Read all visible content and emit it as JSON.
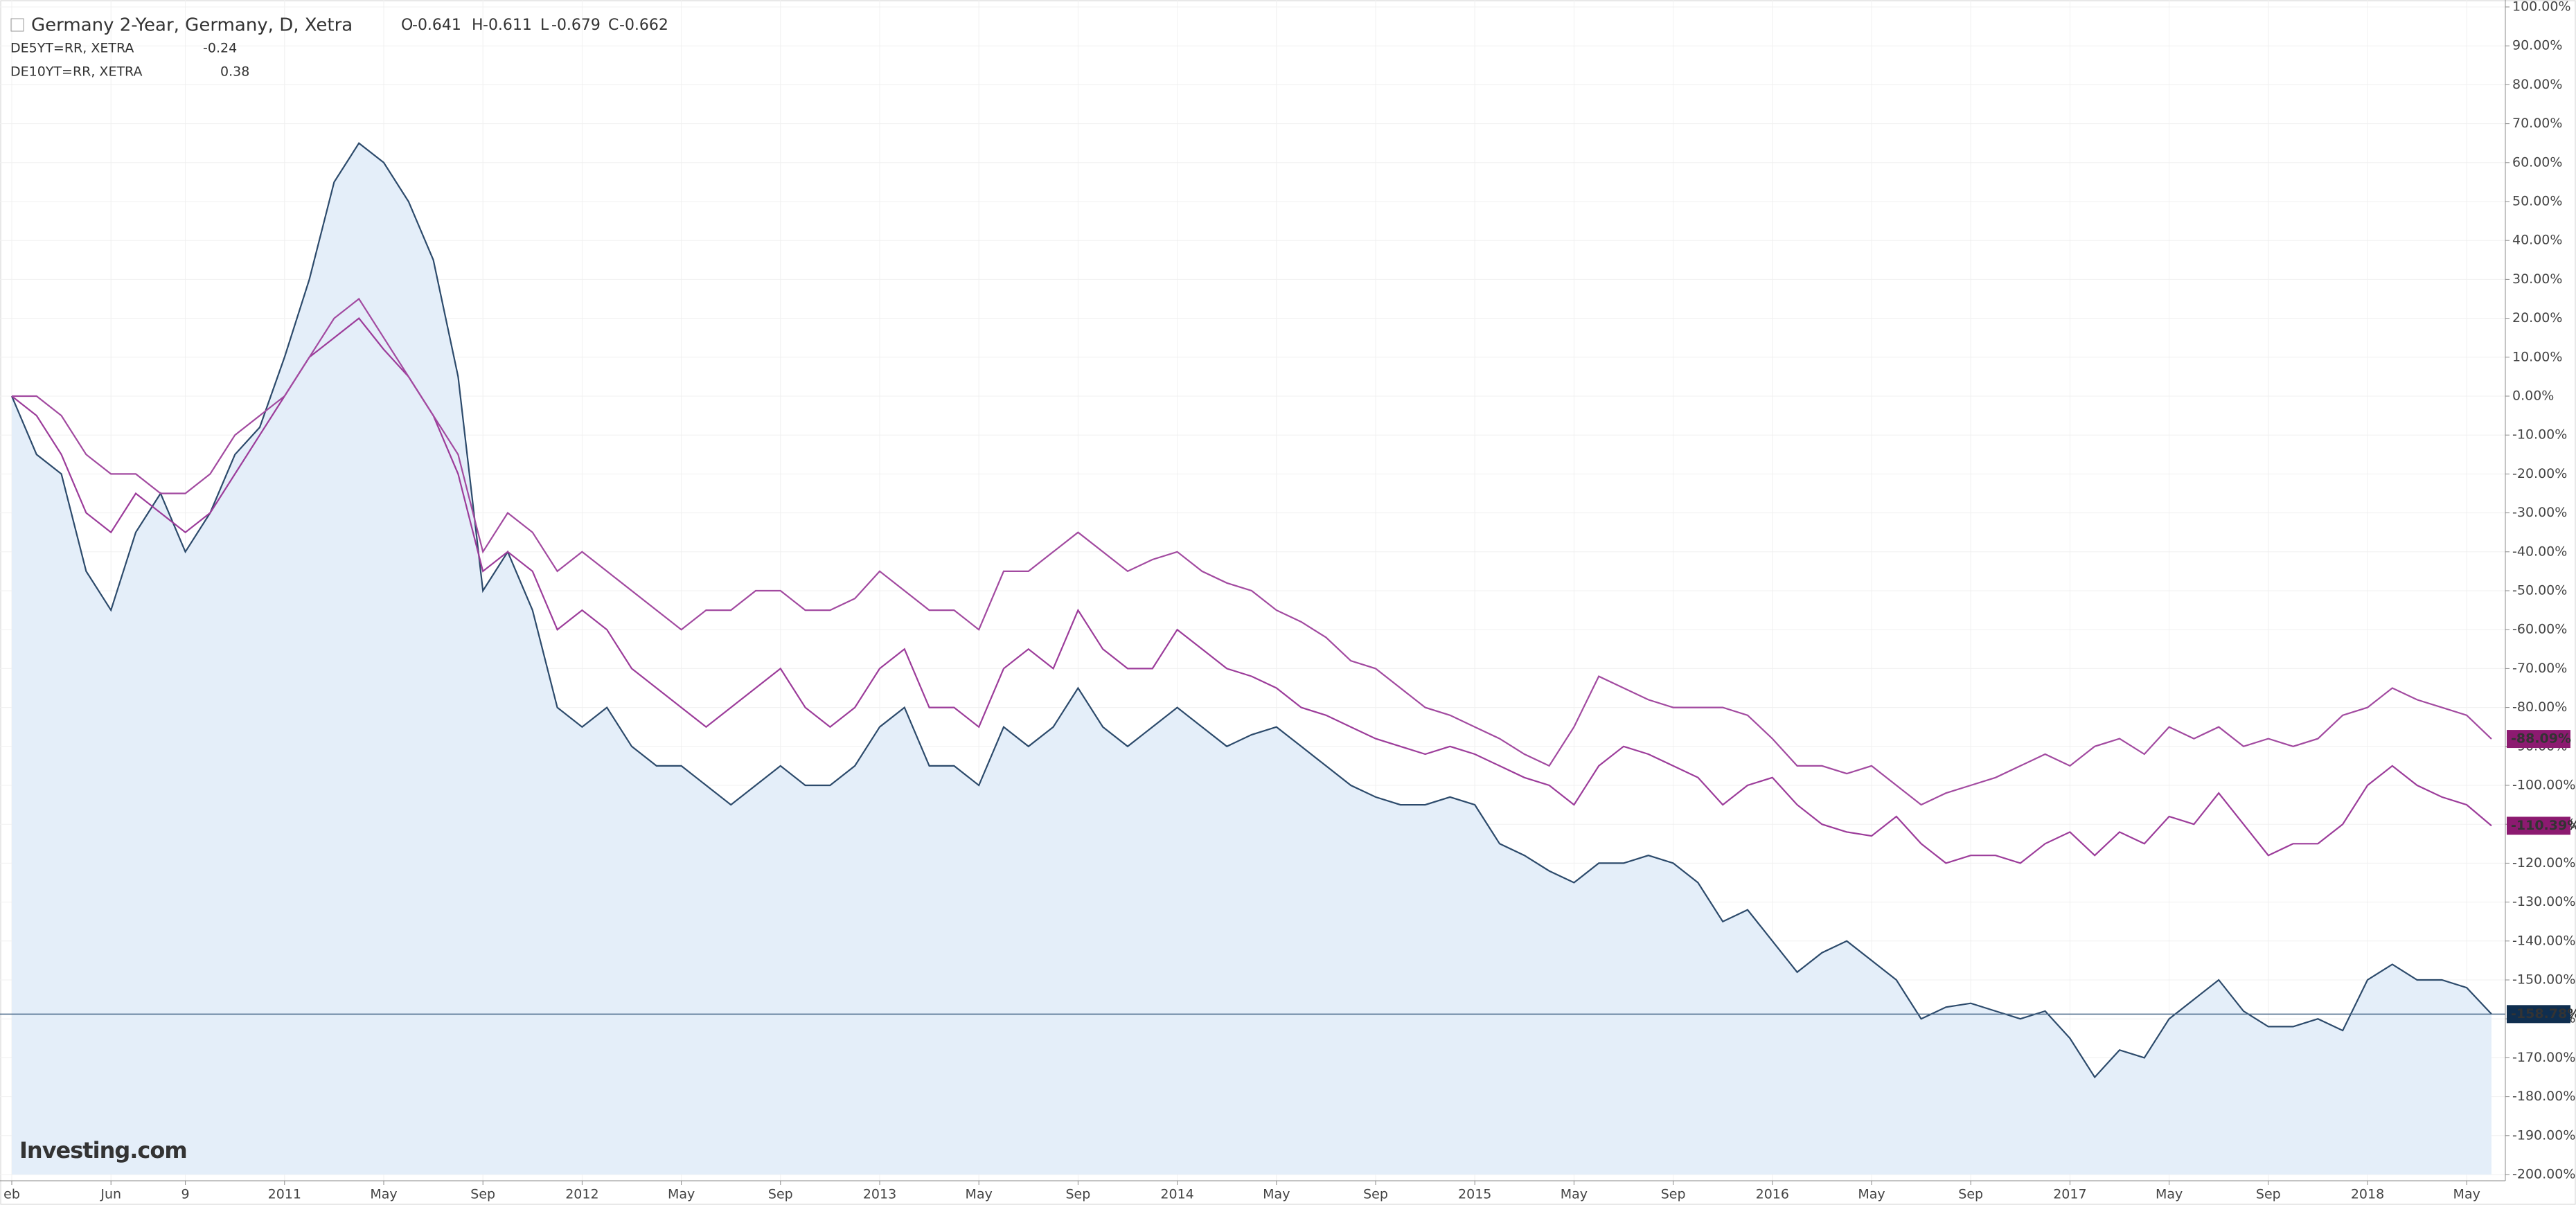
{
  "chart_data": {
    "type": "line",
    "ohlc": [
      {
        "label": "O",
        "value": -0.641
      },
      {
        "label": "H",
        "value": -0.611
      },
      {
        "label": "L",
        "value": -0.679
      },
      {
        "label": "C",
        "value": -0.662
      }
    ],
    "brand": "Investing.com",
    "categories": [
      "eb",
      null,
      null,
      null,
      "Jun",
      null,
      null,
      "9",
      null,
      null,
      null,
      "2011",
      null,
      null,
      null,
      "May",
      null,
      null,
      null,
      "Sep",
      null,
      null,
      null,
      "2012",
      null,
      null,
      null,
      "May",
      null,
      null,
      null,
      "Sep",
      null,
      null,
      null,
      "2013",
      null,
      null,
      null,
      "May",
      null,
      null,
      null,
      "Sep",
      null,
      null,
      null,
      "2014",
      null,
      null,
      null,
      "May",
      null,
      null,
      null,
      "Sep",
      null,
      null,
      null,
      "2015",
      null,
      null,
      null,
      "May",
      null,
      null,
      null,
      "Sep",
      null,
      null,
      null,
      "2016",
      null,
      null,
      null,
      "May",
      null,
      null,
      null,
      "Sep",
      null,
      null,
      null,
      "2017",
      null,
      null,
      null,
      "May",
      null,
      null,
      null,
      "Sep",
      null,
      null,
      null,
      "2018",
      null,
      null,
      null,
      "May",
      null
    ],
    "series": [
      {
        "name": "Germany 2-Year, Germany, D, Xetra",
        "color": "#2c4a6b",
        "area": "#e4eef9",
        "tag_color": "#0f2e4f",
        "values": [
          0,
          -15,
          -20,
          -45,
          -55,
          -35,
          -25,
          -40,
          -30,
          -15,
          -8,
          10,
          30,
          55,
          65,
          60,
          50,
          35,
          5,
          -50,
          -40,
          -55,
          -80,
          -85,
          -80,
          -90,
          -95,
          -95,
          -100,
          -105,
          -100,
          -95,
          -100,
          -100,
          -95,
          -85,
          -80,
          -95,
          -95,
          -100,
          -85,
          -90,
          -85,
          -75,
          -85,
          -90,
          -85,
          -80,
          -85,
          -90,
          -87,
          -85,
          -90,
          -95,
          -100,
          -103,
          -105,
          -105,
          -103,
          -105,
          -115,
          -118,
          -122,
          -125,
          -120,
          -120,
          -118,
          -120,
          -125,
          -135,
          -132,
          -140,
          -148,
          -143,
          -140,
          -145,
          -150,
          -160,
          -157,
          -156,
          -158,
          -160,
          -158,
          -165,
          -175,
          -168,
          -170,
          -160,
          -155,
          -150,
          -158,
          -162,
          -162,
          -160,
          -163,
          -150,
          -146,
          -150,
          -150,
          -152,
          -158.78
        ],
        "value_labels": [
          null,
          null,
          null,
          null,
          null,
          null,
          null,
          null,
          null,
          null,
          null,
          null,
          null,
          null,
          null,
          null,
          null,
          null,
          null,
          null,
          null,
          null,
          null,
          null,
          null,
          null,
          null,
          null,
          null,
          null,
          null,
          null,
          null,
          null,
          null,
          null,
          null,
          null,
          null,
          null,
          null,
          null,
          null,
          null,
          null,
          null,
          null,
          null,
          null,
          null,
          null,
          null,
          null,
          null,
          null,
          null,
          null,
          null,
          null,
          null,
          null,
          null,
          null,
          null,
          null,
          null,
          null,
          null,
          null,
          null,
          null,
          null,
          null,
          null,
          null,
          null,
          null,
          null,
          null,
          null,
          null,
          null,
          null,
          null,
          null,
          null,
          null,
          null,
          null,
          null,
          null,
          null,
          null,
          null,
          null,
          null,
          null,
          null,
          null,
          null,
          "-158.78%"
        ]
      },
      {
        "name": "DE5YT=RR, XETRA",
        "last": -0.24,
        "color": "#9c3c9a",
        "tag_color": "#8c1a70",
        "values": [
          0,
          -5,
          -15,
          -30,
          -35,
          -25,
          -30,
          -35,
          -30,
          -20,
          -10,
          0,
          10,
          15,
          20,
          12,
          5,
          -5,
          -20,
          -45,
          -40,
          -45,
          -60,
          -55,
          -60,
          -70,
          -75,
          -80,
          -85,
          -80,
          -75,
          -70,
          -80,
          -85,
          -80,
          -70,
          -65,
          -80,
          -80,
          -85,
          -70,
          -65,
          -70,
          -55,
          -65,
          -70,
          -70,
          -60,
          -65,
          -70,
          -72,
          -75,
          -80,
          -82,
          -85,
          -88,
          -90,
          -92,
          -90,
          -92,
          -95,
          -98,
          -100,
          -105,
          -95,
          -90,
          -92,
          -95,
          -98,
          -105,
          -100,
          -98,
          -105,
          -110,
          -112,
          -113,
          -108,
          -115,
          -120,
          -118,
          -118,
          -120,
          -115,
          -112,
          -118,
          -112,
          -115,
          -108,
          -110,
          -102,
          -110,
          -118,
          -115,
          -115,
          -110,
          -100,
          -95,
          -100,
          -103,
          -105,
          -110.39
        ],
        "value_labels": [
          null,
          null,
          null,
          null,
          null,
          null,
          null,
          null,
          null,
          null,
          null,
          null,
          null,
          null,
          null,
          null,
          null,
          null,
          null,
          null,
          null,
          null,
          null,
          null,
          null,
          null,
          null,
          null,
          null,
          null,
          null,
          null,
          null,
          null,
          null,
          null,
          null,
          null,
          null,
          null,
          null,
          null,
          null,
          null,
          null,
          null,
          null,
          null,
          null,
          null,
          null,
          null,
          null,
          null,
          null,
          null,
          null,
          null,
          null,
          null,
          null,
          null,
          null,
          null,
          null,
          null,
          null,
          null,
          null,
          null,
          null,
          null,
          null,
          null,
          null,
          null,
          null,
          null,
          null,
          null,
          null,
          null,
          null,
          null,
          null,
          null,
          null,
          null,
          null,
          null,
          null,
          null,
          null,
          null,
          null,
          null,
          null,
          null,
          null,
          null,
          "-110.39%"
        ]
      },
      {
        "name": "DE10YT=RR, XETRA",
        "last": 0.38,
        "color": "#a24aa0",
        "tag_color": "#8c1a70",
        "values": [
          0,
          0,
          -5,
          -15,
          -20,
          -20,
          -25,
          -25,
          -20,
          -10,
          -5,
          0,
          10,
          20,
          25,
          15,
          5,
          -5,
          -15,
          -40,
          -30,
          -35,
          -45,
          -40,
          -45,
          -50,
          -55,
          -60,
          -55,
          -55,
          -50,
          -50,
          -55,
          -55,
          -52,
          -45,
          -50,
          -55,
          -55,
          -60,
          -45,
          -45,
          -40,
          -35,
          -40,
          -45,
          -42,
          -40,
          -45,
          -48,
          -50,
          -55,
          -58,
          -62,
          -68,
          -70,
          -75,
          -80,
          -82,
          -85,
          -88,
          -92,
          -95,
          -85,
          -72,
          -75,
          -78,
          -80,
          -80,
          -80,
          -82,
          -88,
          -95,
          -95,
          -97,
          -95,
          -100,
          -105,
          -102,
          -100,
          -98,
          -95,
          -92,
          -95,
          -90,
          -88,
          -92,
          -85,
          -88,
          -85,
          -90,
          -88,
          -90,
          -88,
          -82,
          -80,
          -75,
          -78,
          -80,
          -82,
          -88.09
        ],
        "value_labels": [
          null,
          null,
          null,
          null,
          null,
          null,
          null,
          null,
          null,
          null,
          null,
          null,
          null,
          null,
          null,
          null,
          null,
          null,
          null,
          null,
          null,
          null,
          null,
          null,
          null,
          null,
          null,
          null,
          null,
          null,
          null,
          null,
          null,
          null,
          null,
          null,
          null,
          null,
          null,
          null,
          null,
          null,
          null,
          null,
          null,
          null,
          null,
          null,
          null,
          null,
          null,
          null,
          null,
          null,
          null,
          null,
          null,
          null,
          null,
          null,
          null,
          null,
          null,
          null,
          null,
          null,
          null,
          null,
          null,
          null,
          null,
          null,
          null,
          null,
          null,
          null,
          null,
          null,
          null,
          null,
          null,
          null,
          null,
          null,
          null,
          null,
          null,
          null,
          null,
          null,
          null,
          null,
          null,
          null,
          null,
          null,
          null,
          null,
          null,
          null,
          "-88.09%"
        ]
      }
    ],
    "ylim": [
      -200,
      100
    ],
    "yticks": [
      {
        "value": 100,
        "label": "100.00%"
      },
      {
        "value": 90,
        "label": "90.00%"
      },
      {
        "value": 80,
        "label": "80.00%"
      },
      {
        "value": 70,
        "label": "70.00%"
      },
      {
        "value": 60,
        "label": "60.00%"
      },
      {
        "value": 50,
        "label": "50.00%"
      },
      {
        "value": 40,
        "label": "40.00%"
      },
      {
        "value": 30,
        "label": "30.00%"
      },
      {
        "value": 20,
        "label": "20.00%"
      },
      {
        "value": 10,
        "label": "10.00%"
      },
      {
        "value": 0,
        "label": "0.00%"
      },
      {
        "value": -10,
        "label": "-10.00%"
      },
      {
        "value": -20,
        "label": "-20.00%"
      },
      {
        "value": -30,
        "label": "-30.00%"
      },
      {
        "value": -40,
        "label": "-40.00%"
      },
      {
        "value": -50,
        "label": "-50.00%"
      },
      {
        "value": -60,
        "label": "-60.00%"
      },
      {
        "value": -70,
        "label": "-70.00%"
      },
      {
        "value": -80,
        "label": "-80.00%"
      },
      {
        "value": -90,
        "label": "-90.00%"
      },
      {
        "value": -100,
        "label": "-100.00%"
      },
      {
        "value": -110,
        "label": "-110.00%"
      },
      {
        "value": -120,
        "label": "-120.00%"
      },
      {
        "value": -130,
        "label": "-130.00%"
      },
      {
        "value": -140,
        "label": "-140.00%"
      },
      {
        "value": -150,
        "label": "-150.00%"
      },
      {
        "value": -160,
        "label": "-160.00%"
      },
      {
        "value": -170,
        "label": "-170.00%"
      },
      {
        "value": -180,
        "label": "-180.00%"
      },
      {
        "value": -190,
        "label": "-190.00%"
      },
      {
        "value": -200,
        "label": "-200.00%"
      }
    ],
    "grid": true
  }
}
